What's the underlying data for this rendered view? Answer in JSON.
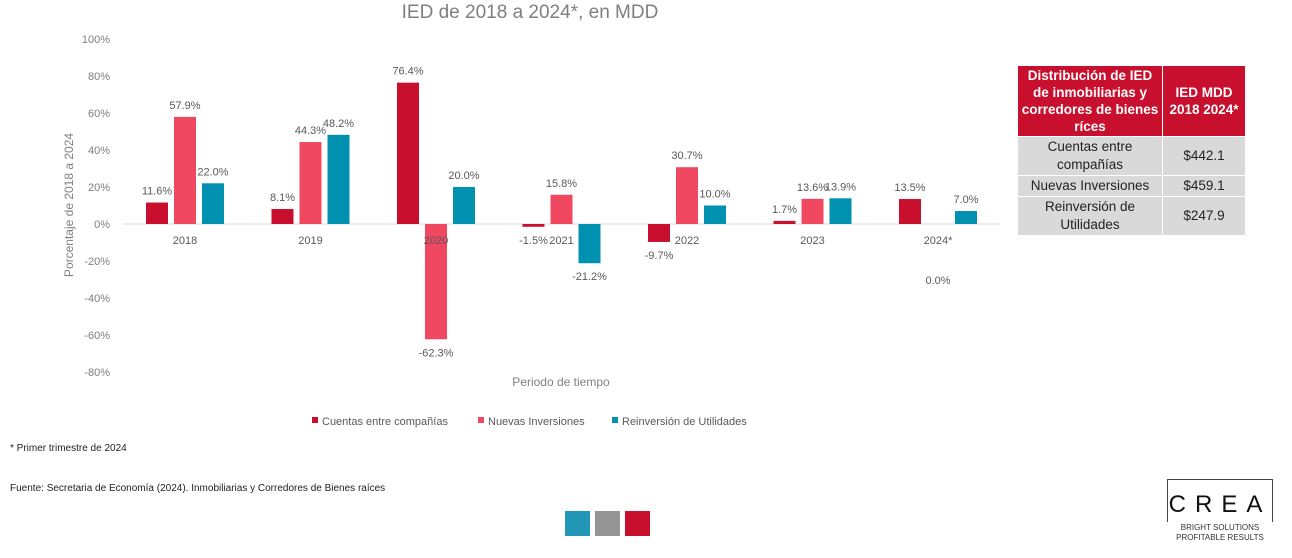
{
  "colors": {
    "cuentas": "#c8102e",
    "nuevas": "#f04860",
    "reinversion": "#0090b0",
    "grid": "#d9d9d9"
  },
  "chart_data": {
    "type": "bar",
    "title": "IED de 2018 a 2024*, en MDD",
    "xlabel": "Periodo de tiempo",
    "ylabel": "Porcentaje de 2018 a 2024",
    "ylim": [
      -80,
      100
    ],
    "yticks": [
      "100%",
      "80%",
      "60%",
      "40%",
      "20%",
      "0%",
      "-20%",
      "-40%",
      "-60%",
      "-80%"
    ],
    "categories": [
      "2018",
      "2019",
      "2020",
      "2021",
      "2022",
      "2023",
      "2024*"
    ],
    "legend_position": "bottom",
    "series": [
      {
        "name": "Cuentas entre compañías",
        "values": [
          11.6,
          8.1,
          76.4,
          -1.5,
          -9.7,
          1.7,
          13.5
        ],
        "labels": [
          "11.6%",
          "8.1%",
          "76.4%",
          "-1.5%",
          "-9.7%",
          "1.7%",
          "13.5%"
        ]
      },
      {
        "name": "Nuevas Inversiones",
        "values": [
          57.9,
          44.3,
          -62.3,
          15.8,
          30.7,
          13.6,
          0.0
        ],
        "labels": [
          "57.9%",
          "44.3%",
          "-62.3%",
          "15.8%",
          "30.7%",
          "13.6%",
          "0.0%"
        ]
      },
      {
        "name": "Reinversión de Utilidades",
        "values": [
          22.0,
          48.2,
          20.0,
          -21.2,
          10.0,
          13.9,
          7.0
        ],
        "labels": [
          "22.0%",
          "48.2%",
          "20.0%",
          "-21.2%",
          "10.0%",
          "13.9%",
          "7.0%"
        ]
      }
    ]
  },
  "table": {
    "headers": [
      "Distribución de IED de inmobiliarias y corredores de bienes ríces",
      "IED MDD 2018 2024*"
    ],
    "rows": [
      {
        "label": "Cuentas entre compañías",
        "value": "$442.1"
      },
      {
        "label": "Nuevas Inversiones",
        "value": "$459.1"
      },
      {
        "label": "Reinversión de Utilidades",
        "value": "$247.9"
      }
    ]
  },
  "footnote": "* Primer trimestre de 2024",
  "source": "Fuente: Secretaria de Economía (2024). Inmobiliarias y Corredores de Bienes raíces",
  "logo": {
    "name": "CREA",
    "tagline1": "BRIGHT SOLUTIONS",
    "tagline2": "PROFITABLE RESULTS",
    "squares": [
      "#2196b6",
      "#959595",
      "#c8102e"
    ]
  }
}
